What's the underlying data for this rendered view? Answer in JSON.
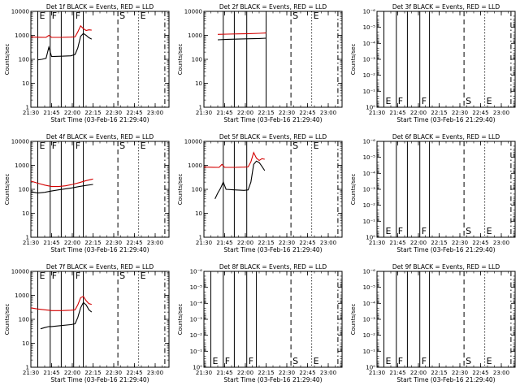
{
  "page": {
    "background": "#ffffff"
  },
  "chart_data": [
    {
      "type": "line",
      "title": "Det 1f BLACK = Events, RED = LLD",
      "xlabel": "Start Time (03-Feb-16 21:29:40)",
      "ylabel": "Counts/sec",
      "y_scale": "log",
      "ylim": [
        1,
        10000
      ],
      "y_ticks": [
        "1",
        "10",
        "100",
        "1000",
        "10000"
      ],
      "xlim": [
        "21:30",
        "23:10"
      ],
      "x_ticks": [
        "21:30",
        "21:45",
        "22:00",
        "22:15",
        "22:30",
        "22:45",
        "23:00"
      ],
      "markers": [
        {
          "time": "21:35",
          "style": "solid",
          "label": "E"
        },
        {
          "time": "21:44",
          "style": "solid",
          "label": "F"
        },
        {
          "time": "21:52",
          "style": "solid",
          "label": ""
        },
        {
          "time": "22:01",
          "style": "solid",
          "label": "F"
        },
        {
          "time": "22:08",
          "style": "solid",
          "label": ""
        },
        {
          "time": "22:33",
          "style": "dashed",
          "label": "S"
        },
        {
          "time": "22:48",
          "style": "dotted",
          "label": "E"
        },
        {
          "time": "23:07",
          "style": "dashdot",
          "label": ""
        }
      ],
      "series": [
        {
          "color": "#d40000",
          "start": "21:30",
          "end": "22:15",
          "x": [
            "21:30",
            "21:37",
            "21:41",
            "21:43",
            "21:45",
            "21:52",
            "21:59",
            "22:02",
            "22:04",
            "22:06",
            "22:08",
            "22:10",
            "22:12",
            "22:14"
          ],
          "y": [
            850,
            830,
            820,
            1000,
            820,
            820,
            840,
            860,
            1400,
            2500,
            1900,
            1600,
            1700,
            1650
          ]
        },
        {
          "color": "#000000",
          "start": "21:35",
          "end": "22:15",
          "x": [
            "21:35",
            "21:38",
            "21:41",
            "21:43",
            "21:45",
            "21:52",
            "21:59",
            "22:02",
            "22:04",
            "22:06",
            "22:08",
            "22:10",
            "22:12",
            "22:14"
          ],
          "y": [
            95,
            100,
            110,
            320,
            130,
            135,
            140,
            160,
            300,
            900,
            1200,
            1000,
            800,
            700
          ]
        }
      ]
    },
    {
      "type": "line",
      "title": "Det 2f BLACK = Events, RED = LLD",
      "xlabel": "Start Time (03-Feb-16 21:29:40)",
      "ylabel": "Counts/sec",
      "y_scale": "log",
      "ylim": [
        1,
        10000
      ],
      "y_ticks": [
        "1",
        "10",
        "100",
        "1000",
        "10000"
      ],
      "xlim": [
        "21:30",
        "23:10"
      ],
      "x_ticks": [
        "21:30",
        "21:45",
        "22:00",
        "22:15",
        "22:30",
        "22:45",
        "23:00"
      ],
      "markers": [
        {
          "time": "21:44",
          "style": "solid",
          "label": ""
        },
        {
          "time": "21:52",
          "style": "solid",
          "label": ""
        },
        {
          "time": "22:01",
          "style": "solid",
          "label": ""
        },
        {
          "time": "22:15",
          "style": "solid",
          "label": ""
        },
        {
          "time": "22:33",
          "style": "dashed",
          "label": "S"
        },
        {
          "time": "22:48",
          "style": "dotted",
          "label": "E"
        },
        {
          "time": "23:07",
          "style": "dashdot",
          "label": ""
        }
      ],
      "series": [
        {
          "color": "#d40000",
          "start": "21:40",
          "end": "22:15",
          "x": [
            "21:40",
            "21:47",
            "21:55",
            "22:03",
            "22:10",
            "22:15"
          ],
          "y": [
            1100,
            1120,
            1150,
            1180,
            1220,
            1250
          ]
        },
        {
          "color": "#000000",
          "start": "21:40",
          "end": "22:15",
          "x": [
            "21:40",
            "21:47",
            "21:55",
            "22:03",
            "22:10",
            "22:15"
          ],
          "y": [
            650,
            680,
            700,
            720,
            740,
            760
          ]
        }
      ]
    },
    {
      "type": "line",
      "title": "Det 3f BLACK = Events, RED = LLD",
      "xlabel": "Start Time (03-Feb-16 21:29:40)",
      "ylabel": "Counts/sec",
      "y_scale": "log",
      "ylim": [
        1,
        1e-06
      ],
      "y_ticks": [
        "10⁰",
        "10⁻¹",
        "10⁻²",
        "10⁻³",
        "10⁻⁴",
        "10⁻⁵",
        "10⁻⁶"
      ],
      "xlim": [
        "21:30",
        "23:10"
      ],
      "x_ticks": [
        "21:30",
        "21:45",
        "22:00",
        "22:15",
        "22:30",
        "22:45",
        "23:00"
      ],
      "markers": [
        {
          "time": "21:35",
          "style": "solid",
          "label": "E"
        },
        {
          "time": "21:44",
          "style": "solid",
          "label": "F"
        },
        {
          "time": "21:52",
          "style": "solid",
          "label": ""
        },
        {
          "time": "22:01",
          "style": "solid",
          "label": "F"
        },
        {
          "time": "22:08",
          "style": "solid",
          "label": ""
        },
        {
          "time": "22:33",
          "style": "dashed",
          "label": "S"
        },
        {
          "time": "22:48",
          "style": "dotted",
          "label": "E"
        },
        {
          "time": "23:07",
          "style": "dashdot",
          "label": ""
        }
      ],
      "series": []
    },
    {
      "type": "line",
      "title": "Det 4f BLACK = Events, RED = LLD",
      "xlabel": "Start Time (03-Feb-16 21:29:40)",
      "ylabel": "Counts/sec",
      "y_scale": "log",
      "ylim": [
        1,
        10000
      ],
      "y_ticks": [
        "1",
        "10",
        "100",
        "1000",
        "10000"
      ],
      "xlim": [
        "21:30",
        "23:10"
      ],
      "x_ticks": [
        "21:30",
        "21:45",
        "22:00",
        "22:15",
        "22:30",
        "22:45",
        "23:00"
      ],
      "markers": [
        {
          "time": "21:35",
          "style": "solid",
          "label": "E"
        },
        {
          "time": "21:44",
          "style": "solid",
          "label": "F"
        },
        {
          "time": "21:52",
          "style": "solid",
          "label": ""
        },
        {
          "time": "22:01",
          "style": "solid",
          "label": "F"
        },
        {
          "time": "22:08",
          "style": "solid",
          "label": ""
        },
        {
          "time": "22:33",
          "style": "dashed",
          "label": "S"
        },
        {
          "time": "22:48",
          "style": "dotted",
          "label": "E"
        },
        {
          "time": "23:07",
          "style": "dashdot",
          "label": ""
        }
      ],
      "series": [
        {
          "color": "#d40000",
          "start": "21:30",
          "end": "22:15",
          "x": [
            "21:30",
            "21:35",
            "21:40",
            "21:45",
            "21:50",
            "21:55",
            "22:00",
            "22:05",
            "22:10",
            "22:15"
          ],
          "y": [
            220,
            180,
            150,
            130,
            130,
            140,
            160,
            190,
            230,
            270
          ]
        },
        {
          "color": "#000000",
          "start": "21:30",
          "end": "22:15",
          "x": [
            "21:30",
            "21:35",
            "21:40",
            "21:45",
            "21:50",
            "21:55",
            "22:00",
            "22:05",
            "22:10",
            "22:15"
          ],
          "y": [
            80,
            70,
            75,
            85,
            95,
            105,
            115,
            130,
            145,
            160
          ]
        }
      ]
    },
    {
      "type": "line",
      "title": "Det 5f BLACK = Events, RED = LLD",
      "xlabel": "Start Time (03-Feb-16 21:29:40)",
      "ylabel": "Counts/sec",
      "y_scale": "log",
      "ylim": [
        1,
        10000
      ],
      "y_ticks": [
        "1",
        "10",
        "100",
        "1000",
        "10000"
      ],
      "xlim": [
        "21:30",
        "23:10"
      ],
      "x_ticks": [
        "21:30",
        "21:45",
        "22:00",
        "22:15",
        "22:30",
        "22:45",
        "23:00"
      ],
      "markers": [
        {
          "time": "21:44",
          "style": "solid",
          "label": ""
        },
        {
          "time": "21:52",
          "style": "solid",
          "label": ""
        },
        {
          "time": "22:01",
          "style": "solid",
          "label": ""
        },
        {
          "time": "22:33",
          "style": "dashed",
          "label": "S"
        },
        {
          "time": "22:48",
          "style": "dotted",
          "label": "E"
        },
        {
          "time": "23:07",
          "style": "dashdot",
          "label": ""
        }
      ],
      "series": [
        {
          "color": "#d40000",
          "start": "21:30",
          "end": "22:15",
          "x": [
            "21:30",
            "21:37",
            "21:41",
            "21:43",
            "21:45",
            "21:52",
            "21:59",
            "22:02",
            "22:04",
            "22:06",
            "22:08",
            "22:10",
            "22:12",
            "22:14"
          ],
          "y": [
            850,
            830,
            820,
            1100,
            820,
            820,
            840,
            860,
            1400,
            3400,
            2000,
            1600,
            1900,
            1800
          ]
        },
        {
          "color": "#000000",
          "start": "21:38",
          "end": "22:15",
          "x": [
            "21:38",
            "21:40",
            "21:42",
            "21:44",
            "21:46",
            "21:52",
            "21:59",
            "22:02",
            "22:04",
            "22:06",
            "22:08",
            "22:10",
            "22:12",
            "22:14"
          ],
          "y": [
            40,
            70,
            110,
            200,
            100,
            95,
            90,
            95,
            200,
            1100,
            1500,
            1300,
            900,
            600
          ]
        }
      ]
    },
    {
      "type": "line",
      "title": "Det 6f BLACK = Events, RED = LLD",
      "xlabel": "Start Time (03-Feb-16 21:29:40)",
      "ylabel": "Counts/sec",
      "y_scale": "log",
      "ylim": [
        1,
        1e-06
      ],
      "y_ticks": [
        "10⁰",
        "10⁻¹",
        "10⁻²",
        "10⁻³",
        "10⁻⁴",
        "10⁻⁵",
        "10⁻⁶"
      ],
      "xlim": [
        "21:30",
        "23:10"
      ],
      "x_ticks": [
        "21:30",
        "21:45",
        "22:00",
        "22:15",
        "22:30",
        "22:45",
        "23:00"
      ],
      "markers": [
        {
          "time": "21:35",
          "style": "solid",
          "label": "E"
        },
        {
          "time": "21:44",
          "style": "solid",
          "label": "F"
        },
        {
          "time": "21:52",
          "style": "solid",
          "label": ""
        },
        {
          "time": "22:01",
          "style": "solid",
          "label": "F"
        },
        {
          "time": "22:08",
          "style": "solid",
          "label": ""
        },
        {
          "time": "22:33",
          "style": "dashed",
          "label": "S"
        },
        {
          "time": "22:48",
          "style": "dotted",
          "label": "E"
        },
        {
          "time": "23:07",
          "style": "dashdot",
          "label": ""
        }
      ],
      "series": []
    },
    {
      "type": "line",
      "title": "Det 7f BLACK = Events, RED = LLD",
      "xlabel": "Start Time (03-Feb-16 21:29:40)",
      "ylabel": "Counts/sec",
      "y_scale": "log",
      "ylim": [
        1,
        10000
      ],
      "y_ticks": [
        "1",
        "10",
        "100",
        "1000",
        "10000"
      ],
      "xlim": [
        "21:30",
        "23:10"
      ],
      "x_ticks": [
        "21:30",
        "21:45",
        "22:00",
        "22:15",
        "22:30",
        "22:45",
        "23:00"
      ],
      "markers": [
        {
          "time": "21:35",
          "style": "solid",
          "label": "E"
        },
        {
          "time": "21:44",
          "style": "solid",
          "label": "F"
        },
        {
          "time": "21:52",
          "style": "solid",
          "label": ""
        },
        {
          "time": "22:01",
          "style": "solid",
          "label": "F"
        },
        {
          "time": "22:08",
          "style": "solid",
          "label": ""
        },
        {
          "time": "22:33",
          "style": "dashed",
          "label": "S"
        },
        {
          "time": "22:48",
          "style": "dotted",
          "label": "E"
        },
        {
          "time": "23:07",
          "style": "dashdot",
          "label": ""
        }
      ],
      "series": [
        {
          "color": "#d40000",
          "start": "21:30",
          "end": "22:15",
          "x": [
            "21:30",
            "21:35",
            "21:40",
            "21:43",
            "21:45",
            "21:52",
            "21:59",
            "22:02",
            "22:04",
            "22:06",
            "22:08",
            "22:10",
            "22:12",
            "22:14"
          ],
          "y": [
            300,
            270,
            250,
            240,
            230,
            230,
            240,
            250,
            400,
            800,
            900,
            600,
            450,
            420
          ]
        },
        {
          "color": "#000000",
          "start": "21:37",
          "end": "22:15",
          "x": [
            "21:37",
            "21:40",
            "21:43",
            "21:45",
            "21:52",
            "21:59",
            "22:02",
            "22:04",
            "22:06",
            "22:08",
            "22:10",
            "22:12",
            "22:14"
          ],
          "y": [
            40,
            45,
            50,
            50,
            55,
            60,
            65,
            120,
            300,
            500,
            400,
            250,
            200
          ]
        }
      ]
    },
    {
      "type": "line",
      "title": "Det 8f BLACK = Events, RED = LLD",
      "xlabel": "Start Time (03-Feb-16 21:29:40)",
      "ylabel": "Counts/sec",
      "y_scale": "log",
      "ylim": [
        1,
        1e-06
      ],
      "y_ticks": [
        "10⁰",
        "10⁻¹",
        "10⁻²",
        "10⁻³",
        "10⁻⁴",
        "10⁻⁵",
        "10⁻⁶"
      ],
      "xlim": [
        "21:30",
        "23:10"
      ],
      "x_ticks": [
        "21:30",
        "21:45",
        "22:00",
        "22:15",
        "22:30",
        "22:45",
        "23:00"
      ],
      "markers": [
        {
          "time": "21:35",
          "style": "solid",
          "label": "E"
        },
        {
          "time": "21:44",
          "style": "solid",
          "label": "F"
        },
        {
          "time": "21:52",
          "style": "solid",
          "label": ""
        },
        {
          "time": "22:01",
          "style": "solid",
          "label": "F"
        },
        {
          "time": "22:08",
          "style": "solid",
          "label": ""
        },
        {
          "time": "22:33",
          "style": "dashed",
          "label": "S"
        },
        {
          "time": "22:48",
          "style": "dotted",
          "label": "E"
        },
        {
          "time": "23:07",
          "style": "dashdot",
          "label": ""
        }
      ],
      "series": []
    },
    {
      "type": "line",
      "title": "Det 9f BLACK = Events, RED = LLD",
      "xlabel": "Start Time (03-Feb-16 21:29:40)",
      "ylabel": "Counts/sec",
      "y_scale": "log",
      "ylim": [
        1,
        1e-06
      ],
      "y_ticks": [
        "10⁰",
        "10⁻¹",
        "10⁻²",
        "10⁻³",
        "10⁻⁴",
        "10⁻⁵",
        "10⁻⁶"
      ],
      "xlim": [
        "21:30",
        "23:10"
      ],
      "x_ticks": [
        "21:30",
        "21:45",
        "22:00",
        "22:15",
        "22:30",
        "22:45",
        "23:00"
      ],
      "markers": [
        {
          "time": "21:35",
          "style": "solid",
          "label": "E"
        },
        {
          "time": "21:44",
          "style": "solid",
          "label": "F"
        },
        {
          "time": "21:52",
          "style": "solid",
          "label": ""
        },
        {
          "time": "22:01",
          "style": "solid",
          "label": "F"
        },
        {
          "time": "22:08",
          "style": "solid",
          "label": ""
        },
        {
          "time": "22:33",
          "style": "dashed",
          "label": "S"
        },
        {
          "time": "22:48",
          "style": "dotted",
          "label": "E"
        },
        {
          "time": "23:07",
          "style": "dashdot",
          "label": ""
        }
      ],
      "series": []
    }
  ]
}
